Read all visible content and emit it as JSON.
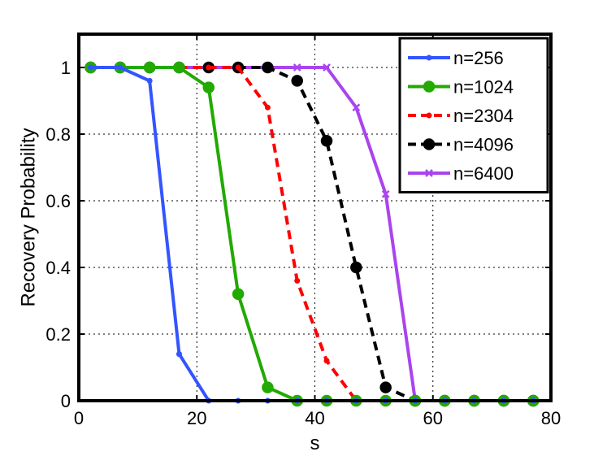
{
  "chart_data": {
    "type": "line",
    "xlabel": "s",
    "ylabel": "Recovery Probability",
    "xlim": [
      0,
      80
    ],
    "ylim": [
      0,
      1.1
    ],
    "xticks": [
      0,
      20,
      40,
      60,
      80
    ],
    "yticks": [
      0,
      0.2,
      0.4,
      0.6,
      0.8,
      1
    ],
    "xtick_labels": [
      "0",
      "20",
      "40",
      "60",
      "80"
    ],
    "ytick_labels": [
      "0",
      "0.2",
      "0.4",
      "0.6",
      "0.8",
      "1"
    ],
    "grid": true,
    "legend_position": "top-right",
    "x": [
      2,
      7,
      12,
      17,
      22,
      27,
      32,
      37,
      42,
      47,
      52,
      57,
      62,
      67,
      72,
      77
    ],
    "series": [
      {
        "name": "n=256",
        "color": "#3355ff",
        "dash": "solid",
        "marker": "small-dot",
        "values": [
          1,
          1,
          0.96,
          0.14,
          0,
          0,
          0,
          0,
          0,
          0,
          0,
          0,
          0,
          0,
          0,
          0
        ]
      },
      {
        "name": "n=1024",
        "color": "#22aa00",
        "dash": "solid",
        "marker": "large-dot",
        "values": [
          1,
          1,
          1,
          1,
          0.94,
          0.32,
          0.04,
          0,
          0,
          0,
          0,
          0,
          0,
          0,
          0,
          0
        ]
      },
      {
        "name": "n=2304",
        "color": "#ff0000",
        "dash": "dashed",
        "marker": "small-dot",
        "values": [
          1,
          1,
          1,
          1,
          1,
          1,
          0.88,
          0.36,
          0.12,
          0,
          0,
          0,
          0,
          0,
          0,
          0
        ]
      },
      {
        "name": "n=4096",
        "color": "#000000",
        "dash": "dashed",
        "marker": "large-dot",
        "values": [
          1,
          1,
          1,
          1,
          1,
          1,
          1,
          0.96,
          0.78,
          0.4,
          0.04,
          0,
          0,
          0,
          0,
          0
        ]
      },
      {
        "name": "n=6400",
        "color": "#aa44ee",
        "dash": "solid",
        "marker": "x-mark",
        "values": [
          1,
          1,
          1,
          1,
          1,
          1,
          1,
          1,
          1,
          0.88,
          0.62,
          0,
          0,
          0,
          0,
          0
        ]
      }
    ]
  }
}
